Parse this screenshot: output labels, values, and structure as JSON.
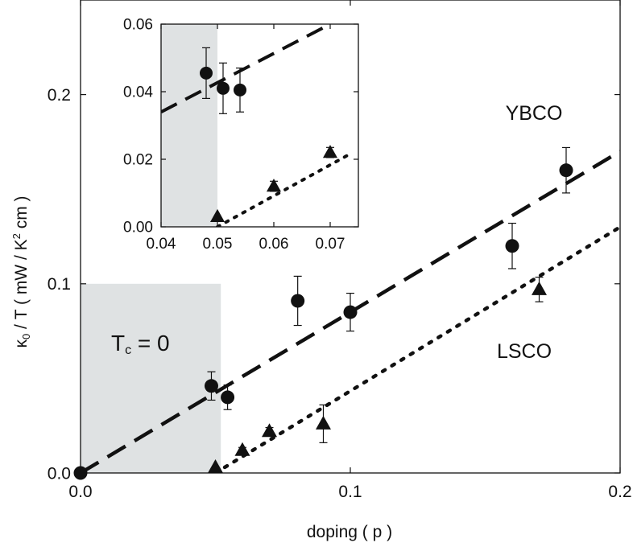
{
  "chart_data": [
    {
      "type": "scatter",
      "role": "main",
      "xlabel": "doping ( p )",
      "ylabel": {
        "main": "κ",
        "sub": "0",
        "mid": " / T ( mW / K",
        "sup": "2",
        "tail": " cm )"
      },
      "xlim": [
        0.0,
        0.2
      ],
      "ylim": [
        0.0,
        0.25
      ],
      "xticks": [
        0.0,
        0.1,
        0.2
      ],
      "xtick_labels": [
        "0.0",
        "0.1",
        "0.2"
      ],
      "yticks": [
        0.0,
        0.1,
        0.2
      ],
      "ytick_labels": [
        "0.0",
        "0.1",
        "0.2"
      ],
      "shaded_region": {
        "x": [
          0.0,
          0.052
        ],
        "y": [
          0.0,
          0.1
        ],
        "color": "#dfe2e3"
      },
      "annotation": {
        "main": "T",
        "sub": "c",
        "tail": " = 0"
      },
      "series": [
        {
          "name": "YBCO",
          "marker": "circle",
          "points": [
            {
              "x": 0.0,
              "y": 0.0,
              "err": 0.0
            },
            {
              "x": 0.0485,
              "y": 0.046,
              "err": 0.0075
            },
            {
              "x": 0.0545,
              "y": 0.04,
              "err": 0.0065
            },
            {
              "x": 0.0805,
              "y": 0.091,
              "err": 0.013
            },
            {
              "x": 0.1,
              "y": 0.085,
              "err": 0.01
            },
            {
              "x": 0.16,
              "y": 0.12,
              "err": 0.012
            },
            {
              "x": 0.18,
              "y": 0.16,
              "err": 0.012
            }
          ],
          "fit": {
            "style": "dashed",
            "x": [
              0.0,
              0.2
            ],
            "y": [
              0.0,
              0.17
            ]
          }
        },
        {
          "name": "LSCO",
          "marker": "triangle",
          "points": [
            {
              "x": 0.05,
              "y": 0.003,
              "err": 0.0
            },
            {
              "x": 0.06,
              "y": 0.012,
              "err": 0.0015
            },
            {
              "x": 0.07,
              "y": 0.022,
              "err": 0.002
            },
            {
              "x": 0.09,
              "y": 0.026,
              "err": 0.01
            },
            {
              "x": 0.17,
              "y": 0.097,
              "err": 0.0065
            }
          ],
          "fit": {
            "style": "dotted",
            "x": [
              0.05,
              0.2
            ],
            "y": [
              0.0,
              0.13
            ]
          }
        }
      ]
    },
    {
      "type": "scatter",
      "role": "inset",
      "xlim": [
        0.04,
        0.075
      ],
      "ylim": [
        0.0,
        0.06
      ],
      "xticks": [
        0.04,
        0.05,
        0.06,
        0.07
      ],
      "xtick_labels": [
        "0.04",
        "0.05",
        "0.06",
        "0.07"
      ],
      "yticks": [
        0.0,
        0.02,
        0.04,
        0.06
      ],
      "ytick_labels": [
        "0.00",
        "0.02",
        "0.04",
        "0.06"
      ],
      "shaded_region": {
        "x": [
          0.04,
          0.05
        ],
        "y": [
          0.0,
          0.06
        ],
        "color": "#dfe2e3"
      },
      "series": [
        {
          "name": "YBCO",
          "marker": "circle",
          "points": [
            {
              "x": 0.048,
              "y": 0.0455,
              "err": 0.0075
            },
            {
              "x": 0.051,
              "y": 0.041,
              "err": 0.0075
            },
            {
              "x": 0.054,
              "y": 0.0405,
              "err": 0.0065
            }
          ],
          "fit": {
            "style": "dashed",
            "x": [
              0.04,
              0.07
            ],
            "y": [
              0.034,
              0.06
            ]
          }
        },
        {
          "name": "LSCO",
          "marker": "triangle",
          "points": [
            {
              "x": 0.05,
              "y": 0.003,
              "err": 0.0
            },
            {
              "x": 0.06,
              "y": 0.012,
              "err": 0.0015
            },
            {
              "x": 0.07,
              "y": 0.022,
              "err": 0.0015
            }
          ],
          "fit": {
            "style": "dotted",
            "x": [
              0.05,
              0.074
            ],
            "y": [
              0.0,
              0.022
            ]
          }
        }
      ]
    }
  ]
}
